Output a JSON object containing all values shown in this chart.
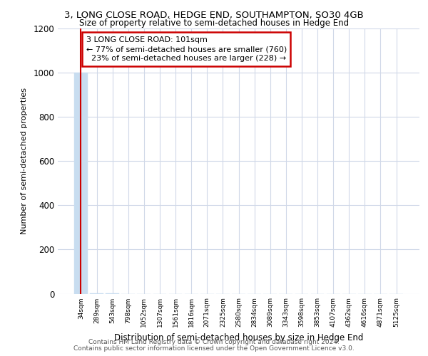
{
  "title1": "3, LONG CLOSE ROAD, HEDGE END, SOUTHAMPTON, SO30 4GB",
  "title2": "Size of property relative to semi-detached houses in Hedge End",
  "xlabel": "Distribution of semi-detached houses by size in Hedge End",
  "ylabel": "Number of semi-detached properties",
  "footer1": "Contains HM Land Registry data © Crown copyright and database right 2024.",
  "footer2": "Contains public sector information licensed under the Open Government Licence v3.0.",
  "property_label": "3 LONG CLOSE ROAD: 101sqm",
  "smaller_pct": 77,
  "smaller_count": 760,
  "larger_pct": 23,
  "larger_count": 228,
  "categories": [
    "34sqm",
    "289sqm",
    "543sqm",
    "798sqm",
    "1052sqm",
    "1307sqm",
    "1561sqm",
    "1816sqm",
    "2071sqm",
    "2325sqm",
    "2580sqm",
    "2834sqm",
    "3089sqm",
    "3343sqm",
    "3598sqm",
    "3853sqm",
    "4107sqm",
    "4362sqm",
    "4616sqm",
    "4871sqm",
    "5125sqm"
  ],
  "values": [
    1000,
    2,
    1,
    0,
    0,
    0,
    0,
    0,
    0,
    0,
    0,
    0,
    0,
    0,
    0,
    0,
    0,
    0,
    0,
    0,
    0
  ],
  "bar_color": "#c8ddf0",
  "bar_edge_color": "#c8ddf0",
  "property_line_color": "#cc0000",
  "annotation_box_color": "#cc0000",
  "grid_color": "#d0d8e8",
  "background_color": "#ffffff",
  "ylim": [
    0,
    1200
  ],
  "yticks": [
    0,
    200,
    400,
    600,
    800,
    1000,
    1200
  ]
}
